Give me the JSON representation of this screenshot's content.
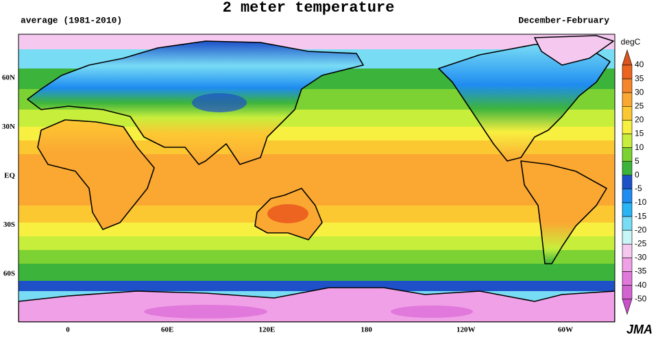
{
  "header": {
    "title": "2 meter temperature",
    "left": "average (1981-2010)",
    "right": "December-February"
  },
  "map": {
    "lat_labels": [
      "60N",
      "30N",
      "EQ",
      "30S",
      "60S"
    ],
    "lon_labels": [
      "0",
      "60E",
      "120E",
      "180",
      "120W",
      "60W"
    ]
  },
  "colorbar": {
    "unit": "degC",
    "ticks": [
      40,
      35,
      30,
      25,
      20,
      15,
      10,
      5,
      0,
      -5,
      -10,
      -15,
      -20,
      -25,
      -30,
      -35,
      -40,
      -50
    ],
    "colors": [
      "#d9551e",
      "#ec6420",
      "#f5862a",
      "#fba832",
      "#fcc832",
      "#f8f040",
      "#c8ee3c",
      "#7cd232",
      "#3cb43c",
      "#1e50c8",
      "#1e8cf0",
      "#28b4f5",
      "#78dcf5",
      "#c8f5f5",
      "#f5c8f0",
      "#f0a0e6",
      "#e178dc",
      "#d264d2",
      "#c850c8"
    ]
  },
  "credit": "JMA"
}
